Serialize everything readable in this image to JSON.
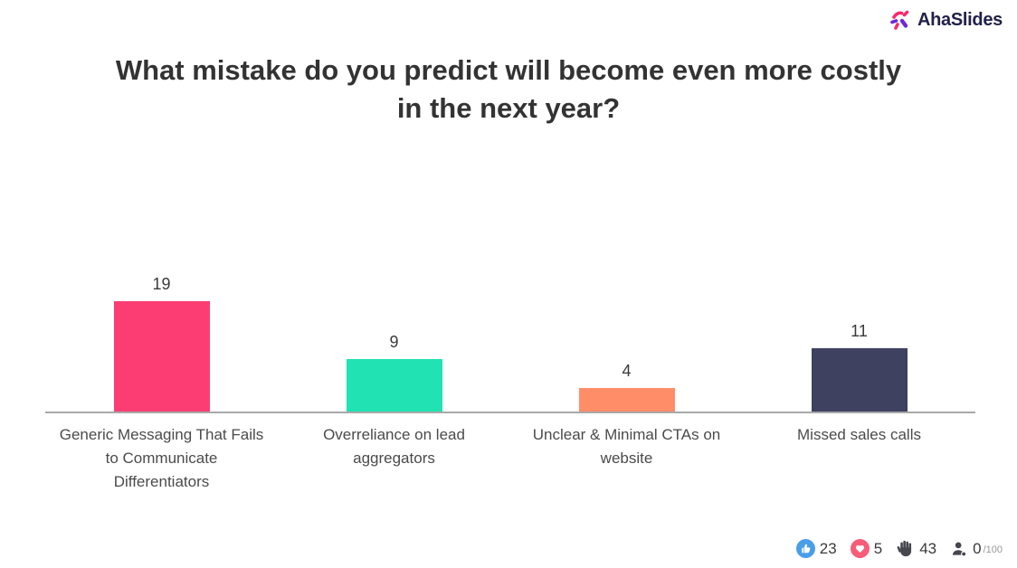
{
  "logo": {
    "brand": "AhaSlides"
  },
  "title": {
    "lines": [
      "What mistake do you predict will become even more costly",
      "in the next year?"
    ]
  },
  "chart_data": {
    "type": "bar",
    "title": "What mistake do you predict will become even more costly in the next year?",
    "categories": [
      "Generic Messaging That Fails to Communicate Differentiators",
      "Overreliance on lead aggregators",
      "Unclear & Minimal CTAs on website",
      "Missed sales calls"
    ],
    "values": [
      19,
      9,
      4,
      11
    ],
    "value_labels": [
      "19",
      "9",
      "4",
      "11"
    ],
    "colors": [
      "#FC3D73",
      "#21E2B2",
      "#FF8E68",
      "#3E4160"
    ],
    "xlabel": "",
    "ylabel": "",
    "ylim": [
      0,
      20
    ],
    "grid": false,
    "legend": false,
    "axis_line_color": "#A8A8A8"
  },
  "reactions": {
    "like": {
      "count": "23",
      "circle_color": "#4A9EE9"
    },
    "heart": {
      "count": "5",
      "circle_color": "#F85C76"
    },
    "hand": {
      "count": "43",
      "color": "#46464F"
    },
    "participants": {
      "count": "0",
      "suffix": "/100",
      "color": "#46464F"
    }
  }
}
